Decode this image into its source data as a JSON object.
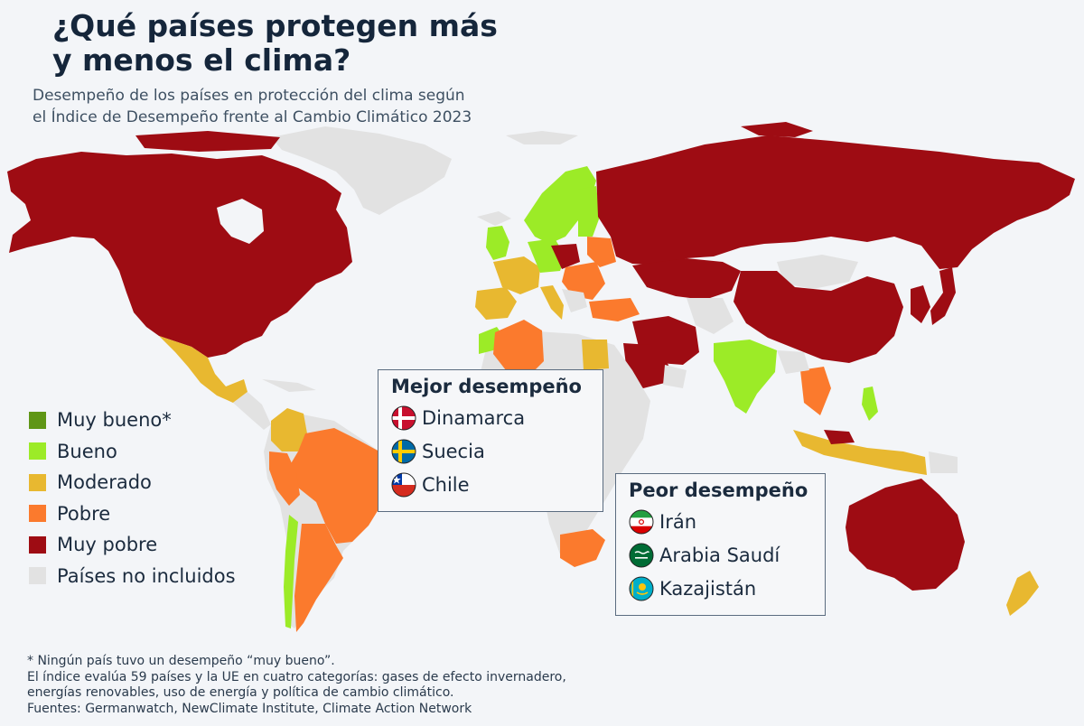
{
  "header": {
    "title_line1": "¿Qué países protegen más",
    "title_line2": "y menos el clima?",
    "subtitle_line1": "Desempeño de los países en protección del clima según",
    "subtitle_line2": "el Índice de Desempeño frente al Cambio Climático 2023"
  },
  "colors": {
    "muy_bueno": "#5f9616",
    "bueno": "#9ceb27",
    "moderado": "#e8b830",
    "pobre": "#fb7a2d",
    "muy_pobre": "#9e0c13",
    "no_incluidos": "#e2e2e2",
    "ocean": "#f3f5f8"
  },
  "legend": {
    "items": [
      {
        "label": "Muy bueno*",
        "color": "#5f9616"
      },
      {
        "label": "Bueno",
        "color": "#9ceb27"
      },
      {
        "label": "Moderado",
        "color": "#e8b830"
      },
      {
        "label": "Pobre",
        "color": "#fb7a2d"
      },
      {
        "label": "Muy pobre",
        "color": "#9e0c13"
      },
      {
        "label": "Países no incluidos",
        "color": "#e2e2e2"
      }
    ]
  },
  "best": {
    "title": "Mejor desempeño",
    "items": [
      {
        "label": "Dinamarca",
        "flag": "denmark-flag-icon"
      },
      {
        "label": "Suecia",
        "flag": "sweden-flag-icon"
      },
      {
        "label": "Chile",
        "flag": "chile-flag-icon"
      }
    ]
  },
  "worst": {
    "title": "Peor desempeño",
    "items": [
      {
        "label": "Irán",
        "flag": "iran-flag-icon"
      },
      {
        "label": "Arabia Saudí",
        "flag": "saudi-arabia-flag-icon"
      },
      {
        "label": "Kazajistán",
        "flag": "kazakhstan-flag-icon"
      }
    ]
  },
  "footnotes": {
    "line1": "* Ningún país tuvo un desempeño “muy bueno”.",
    "line2": "El índice evalúa 59 países y la UE en cuatro categorías: gases de efecto invernadero,",
    "line3": "energías renovables, uso de energía y política de cambio climático.",
    "line4": "Fuentes: Germanwatch, NewClimate Institute, Climate Action Network"
  }
}
